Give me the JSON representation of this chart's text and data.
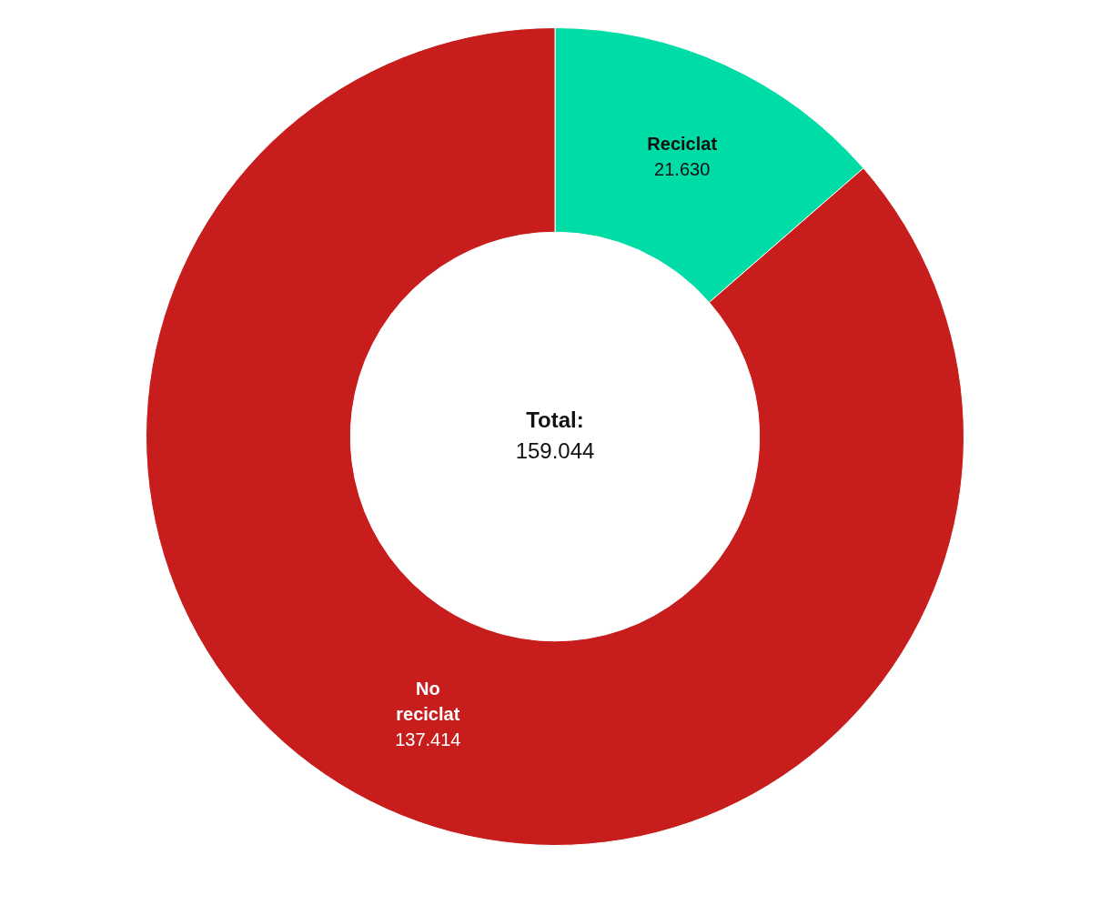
{
  "chart_data": {
    "type": "donut",
    "categories": [
      "Reciclat",
      "No reciclat"
    ],
    "values": [
      21630,
      137414
    ],
    "value_labels": [
      "21.630",
      "137.414"
    ],
    "colors": [
      "#00dca6",
      "#c71e1d"
    ],
    "annotations": [
      "Total:",
      "159.044"
    ],
    "legend": false
  }
}
